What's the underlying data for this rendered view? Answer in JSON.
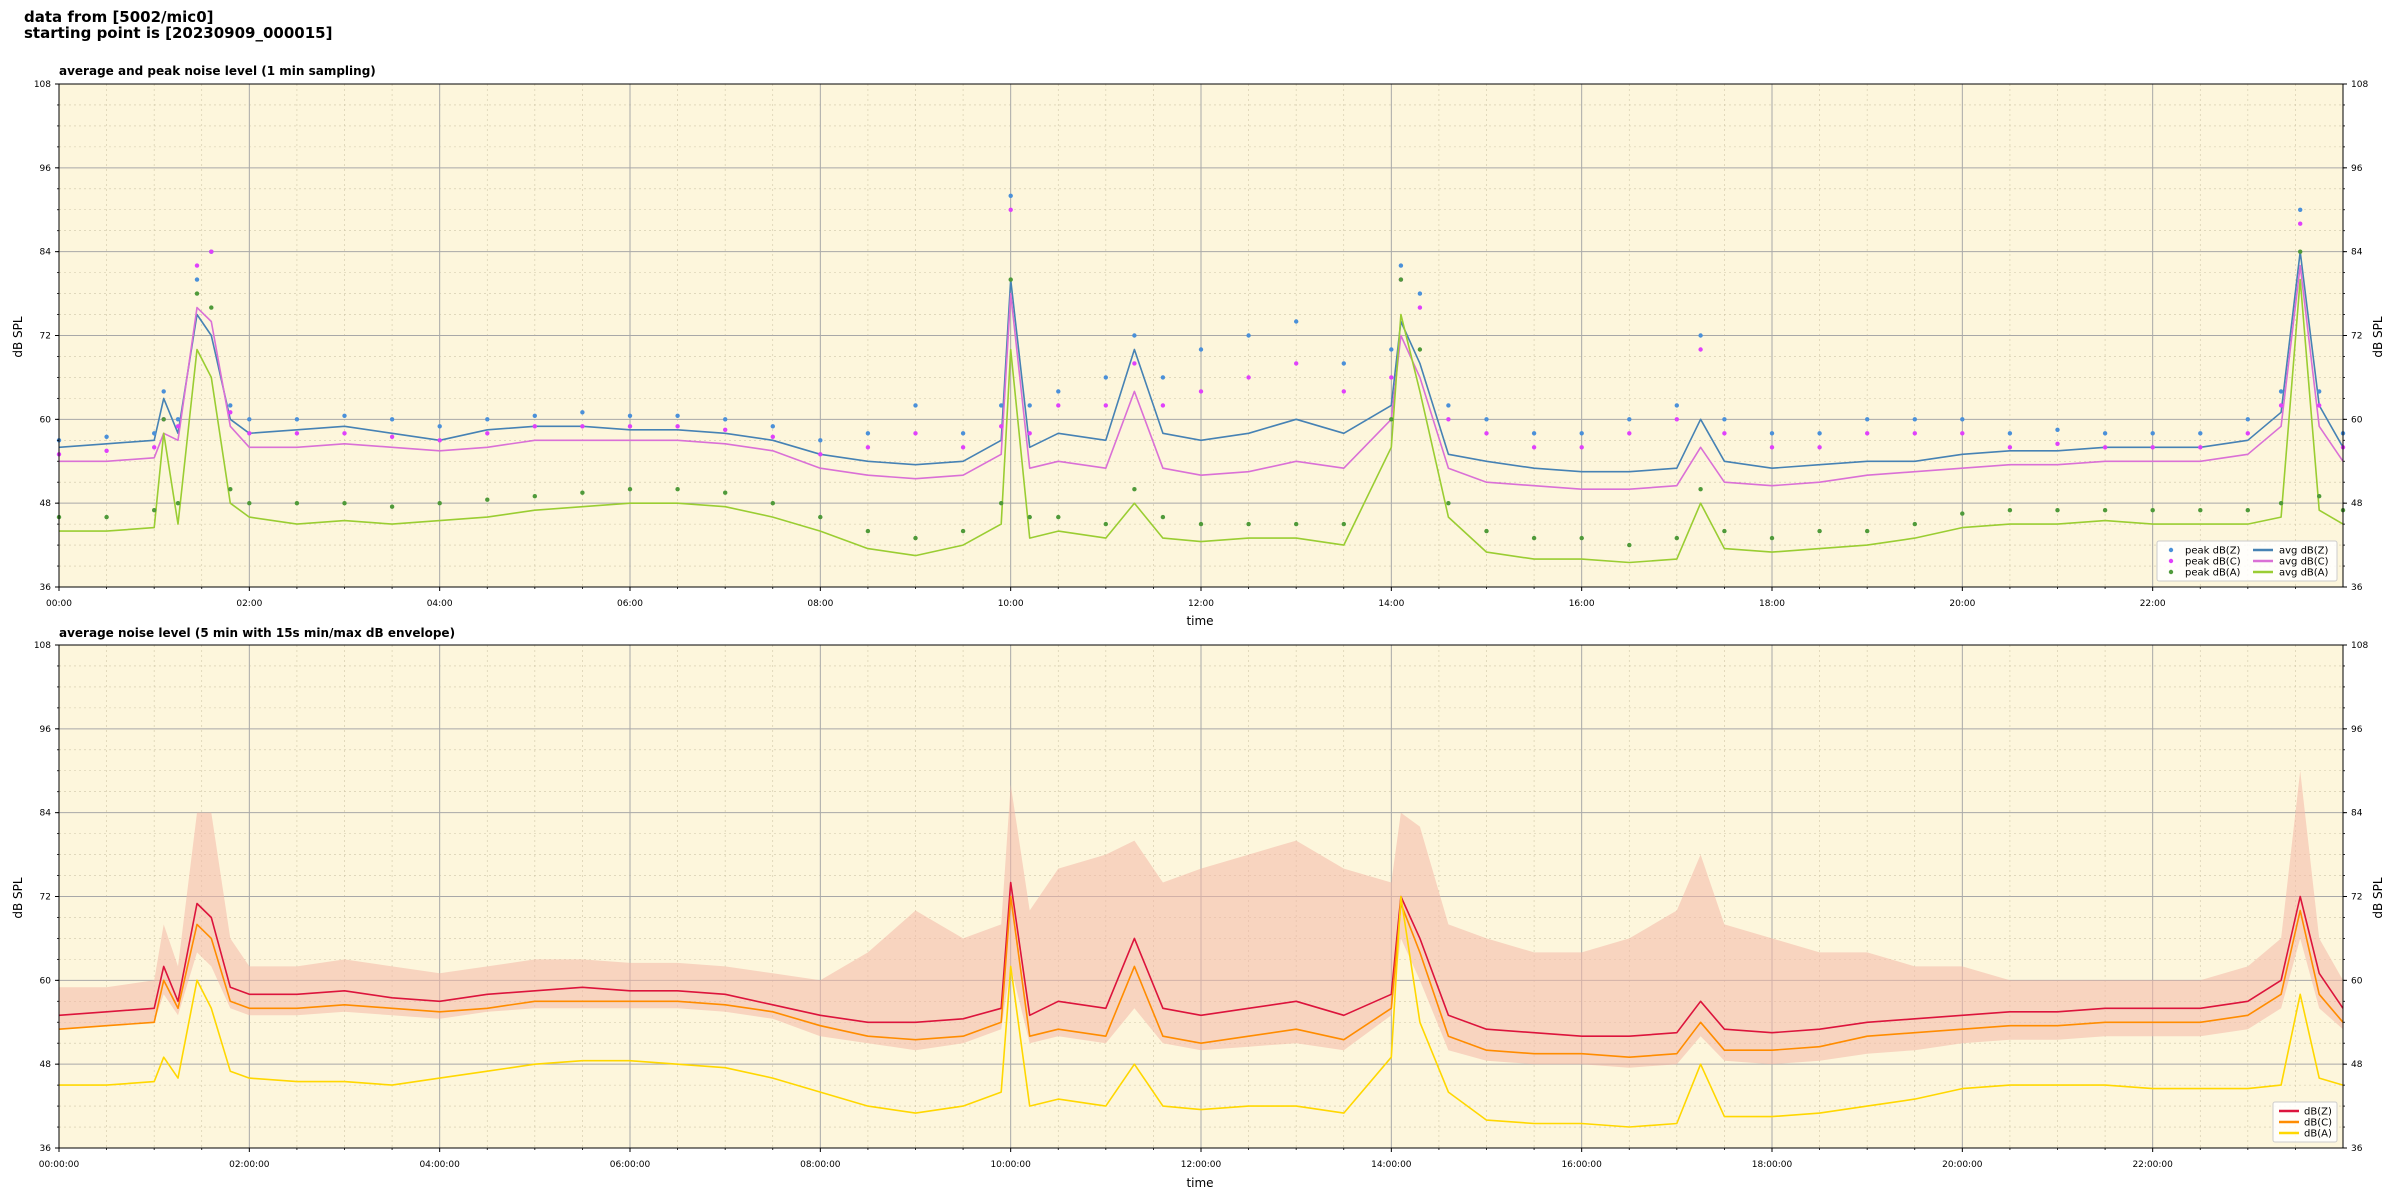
{
  "header": {
    "line1": "data from [5002/mic0]",
    "line2": "starting point is [20230909_000015]"
  },
  "chart_data": [
    {
      "type": "line",
      "title": "average and peak noise level (1 min sampling)",
      "xlabel": "time",
      "ylabel": "dB SPL",
      "ylabel_right": "dB SPL",
      "xlim": [
        0,
        24
      ],
      "ylim": [
        36,
        108
      ],
      "yticks": [
        36,
        48,
        60,
        72,
        84,
        96,
        108
      ],
      "xtick_labels": [
        "00:00",
        "02:00",
        "04:00",
        "06:00",
        "08:00",
        "10:00",
        "12:00",
        "14:00",
        "16:00",
        "18:00",
        "20:00",
        "22:00"
      ],
      "grid": true,
      "legend_position": "lower-right",
      "background_color": "#fdf6dc",
      "x": [
        0.0,
        0.5,
        1.0,
        1.1,
        1.25,
        1.45,
        1.6,
        1.8,
        2.0,
        2.5,
        3.0,
        3.5,
        4.0,
        4.5,
        5.0,
        5.5,
        6.0,
        6.5,
        7.0,
        7.5,
        8.0,
        8.5,
        9.0,
        9.5,
        9.9,
        10.0,
        10.2,
        10.5,
        11.0,
        11.3,
        11.6,
        12.0,
        12.5,
        13.0,
        13.5,
        14.0,
        14.1,
        14.3,
        14.6,
        15.0,
        15.5,
        16.0,
        16.5,
        17.0,
        17.25,
        17.5,
        18.0,
        18.5,
        19.0,
        19.5,
        20.0,
        20.5,
        21.0,
        21.5,
        22.0,
        22.5,
        23.0,
        23.35,
        23.55,
        23.75,
        24.0
      ],
      "series": [
        {
          "name": "avg dB(Z)",
          "style": "line",
          "color": "#4682b4",
          "values": [
            56,
            56.5,
            57,
            63,
            58,
            75,
            72,
            60,
            58,
            58.5,
            59,
            58,
            57,
            58.5,
            59,
            59,
            58.5,
            58.5,
            58,
            57,
            55,
            54,
            53.5,
            54,
            57,
            80,
            56,
            58,
            57,
            70,
            58,
            57,
            58,
            60,
            58,
            62,
            74,
            68,
            55,
            54,
            53,
            52.5,
            52.5,
            53,
            60,
            54,
            53,
            53.5,
            54,
            54,
            55,
            55.5,
            55.5,
            56,
            56,
            56,
            57,
            61,
            84,
            62,
            56
          ]
        },
        {
          "name": "avg dB(C)",
          "style": "line",
          "color": "#da70d6",
          "values": [
            54,
            54,
            54.5,
            58,
            57,
            76,
            74,
            59,
            56,
            56,
            56.5,
            56,
            55.5,
            56,
            57,
            57,
            57,
            57,
            56.5,
            55.5,
            53,
            52,
            51.5,
            52,
            55,
            78,
            53,
            54,
            53,
            64,
            53,
            52,
            52.5,
            54,
            53,
            60,
            72,
            66,
            53,
            51,
            50.5,
            50,
            50,
            50.5,
            56,
            51,
            50.5,
            51,
            52,
            52.5,
            53,
            53.5,
            53.5,
            54,
            54,
            54,
            55,
            59,
            82,
            59,
            54
          ]
        },
        {
          "name": "avg dB(A)",
          "style": "line",
          "color": "#9acd32",
          "values": [
            44,
            44,
            44.5,
            58,
            45,
            70,
            66,
            48,
            46,
            45,
            45.5,
            45,
            45.5,
            46,
            47,
            47.5,
            48,
            48,
            47.5,
            46,
            44,
            41.5,
            40.5,
            42,
            45,
            70,
            43,
            44,
            43,
            48,
            43,
            42.5,
            43,
            43,
            42,
            56,
            75,
            64,
            46,
            41,
            40,
            40,
            39.5,
            40,
            48,
            41.5,
            41,
            41.5,
            42,
            43,
            44.5,
            45,
            45,
            45.5,
            45,
            45,
            45,
            46,
            80,
            47,
            45
          ]
        },
        {
          "name": "peak dB(Z)",
          "style": "dots",
          "color": "#4a90d9",
          "values": [
            57,
            57.5,
            58,
            64,
            60,
            80,
            84,
            62,
            60,
            60,
            60.5,
            60,
            59,
            60,
            60.5,
            61,
            60.5,
            60.5,
            60,
            59,
            57,
            58,
            62,
            58,
            62,
            92,
            62,
            64,
            66,
            72,
            66,
            70,
            72,
            74,
            68,
            70,
            82,
            78,
            62,
            60,
            58,
            58,
            60,
            62,
            72,
            60,
            58,
            58,
            60,
            60,
            60,
            58,
            58.5,
            58,
            58,
            58,
            60,
            64,
            90,
            64,
            58
          ]
        },
        {
          "name": "peak dB(C)",
          "style": "dots",
          "color": "#e040fb",
          "values": [
            55,
            55.5,
            56,
            60,
            59,
            82,
            84,
            61,
            58,
            58,
            58,
            57.5,
            57,
            58,
            59,
            59,
            59,
            59,
            58.5,
            57.5,
            55,
            56,
            58,
            56,
            59,
            90,
            58,
            62,
            62,
            68,
            62,
            64,
            66,
            68,
            64,
            66,
            80,
            76,
            60,
            58,
            56,
            56,
            58,
            60,
            70,
            58,
            56,
            56,
            58,
            58,
            58,
            56,
            56.5,
            56,
            56,
            56,
            58,
            62,
            88,
            62,
            56
          ]
        },
        {
          "name": "peak dB(A)",
          "style": "dots",
          "color": "#4f9a3a",
          "values": [
            46,
            46,
            47,
            60,
            48,
            78,
            76,
            50,
            48,
            48,
            48,
            47.5,
            48,
            48.5,
            49,
            49.5,
            50,
            50,
            49.5,
            48,
            46,
            44,
            43,
            44,
            48,
            80,
            46,
            46,
            45,
            50,
            46,
            45,
            45,
            45,
            45,
            60,
            80,
            70,
            48,
            44,
            43,
            43,
            42,
            43,
            50,
            44,
            43,
            44,
            44,
            45,
            46.5,
            47,
            47,
            47,
            47,
            47,
            47,
            48,
            84,
            49,
            47
          ]
        }
      ]
    },
    {
      "type": "line",
      "title": "average noise level (5 min with 15s min/max dB envelope)",
      "xlabel": "time",
      "ylabel": "dB SPL",
      "ylabel_right": "dB SPL",
      "xlim": [
        0,
        24
      ],
      "ylim": [
        36,
        108
      ],
      "yticks": [
        36,
        48,
        60,
        72,
        84,
        96,
        108
      ],
      "xtick_labels": [
        "00:00:00",
        "02:00:00",
        "04:00:00",
        "06:00:00",
        "08:00:00",
        "10:00:00",
        "12:00:00",
        "14:00:00",
        "16:00:00",
        "18:00:00",
        "20:00:00",
        "22:00:00"
      ],
      "grid": true,
      "legend_position": "lower-right",
      "background_color": "#fdf6dc",
      "envelope_color": "#f4b8a8",
      "x": [
        0.0,
        0.5,
        1.0,
        1.1,
        1.25,
        1.45,
        1.6,
        1.8,
        2.0,
        2.5,
        3.0,
        3.5,
        4.0,
        4.5,
        5.0,
        5.5,
        6.0,
        6.5,
        7.0,
        7.5,
        8.0,
        8.5,
        9.0,
        9.5,
        9.9,
        10.0,
        10.2,
        10.5,
        11.0,
        11.3,
        11.6,
        12.0,
        12.5,
        13.0,
        13.5,
        14.0,
        14.1,
        14.3,
        14.6,
        15.0,
        15.5,
        16.0,
        16.5,
        17.0,
        17.25,
        17.5,
        18.0,
        18.5,
        19.0,
        19.5,
        20.0,
        20.5,
        21.0,
        21.5,
        22.0,
        22.5,
        23.0,
        23.35,
        23.55,
        23.75,
        24.0
      ],
      "envelope": {
        "min": [
          53,
          53.5,
          54,
          58,
          55,
          64,
          62,
          56,
          55,
          55,
          55.5,
          55,
          54.5,
          55.5,
          56,
          56,
          56,
          56,
          55.5,
          54.5,
          52,
          51,
          50,
          51,
          53,
          62,
          51,
          52,
          51,
          56,
          51,
          50,
          50.5,
          51,
          50,
          55,
          66,
          60,
          50,
          48.5,
          48,
          48,
          47.5,
          48,
          52,
          48.5,
          48,
          48.5,
          49.5,
          50,
          51,
          51.5,
          51.5,
          52,
          52,
          52,
          53,
          56,
          66,
          56,
          53
        ],
        "max": [
          59,
          59,
          60,
          68,
          62,
          84,
          84,
          66,
          62,
          62,
          63,
          62,
          61,
          62,
          63,
          63,
          62.5,
          62.5,
          62,
          61,
          60,
          64,
          70,
          66,
          68,
          88,
          70,
          76,
          78,
          80,
          74,
          76,
          78,
          80,
          76,
          74,
          84,
          82,
          68,
          66,
          64,
          64,
          66,
          70,
          78,
          68,
          66,
          64,
          64,
          62,
          62,
          60,
          60,
          60,
          60,
          60,
          62,
          66,
          90,
          66,
          60
        ]
      },
      "series": [
        {
          "name": "dB(Z)",
          "style": "line",
          "color": "#dc143c",
          "values": [
            55,
            55.5,
            56,
            62,
            57,
            71,
            69,
            59,
            58,
            58,
            58.5,
            57.5,
            57,
            58,
            58.5,
            59,
            58.5,
            58.5,
            58,
            56.5,
            55,
            54,
            54,
            54.5,
            56,
            74,
            55,
            57,
            56,
            66,
            56,
            55,
            56,
            57,
            55,
            58,
            72,
            66,
            55,
            53,
            52.5,
            52,
            52,
            52.5,
            57,
            53,
            52.5,
            53,
            54,
            54.5,
            55,
            55.5,
            55.5,
            56,
            56,
            56,
            57,
            60,
            72,
            61,
            56
          ]
        },
        {
          "name": "dB(C)",
          "style": "line",
          "color": "#ff8c00",
          "values": [
            53,
            53.5,
            54,
            60,
            56,
            68,
            66,
            57,
            56,
            56,
            56.5,
            56,
            55.5,
            56,
            57,
            57,
            57,
            57,
            56.5,
            55.5,
            53.5,
            52,
            51.5,
            52,
            54,
            72,
            52,
            53,
            52,
            62,
            52,
            51,
            52,
            53,
            51.5,
            56,
            71,
            64,
            52,
            50,
            49.5,
            49.5,
            49,
            49.5,
            54,
            50,
            50,
            50.5,
            52,
            52.5,
            53,
            53.5,
            53.5,
            54,
            54,
            54,
            55,
            58,
            70,
            58,
            54
          ]
        },
        {
          "name": "dB(A)",
          "style": "line",
          "color": "#ffd700",
          "values": [
            45,
            45,
            45.5,
            49,
            46,
            60,
            56,
            47,
            46,
            45.5,
            45.5,
            45,
            46,
            47,
            48,
            48.5,
            48.5,
            48,
            47.5,
            46,
            44,
            42,
            41,
            42,
            44,
            62,
            42,
            43,
            42,
            48,
            42,
            41.5,
            42,
            42,
            41,
            49,
            72,
            54,
            44,
            40,
            39.5,
            39.5,
            39,
            39.5,
            48,
            40.5,
            40.5,
            41,
            42,
            43,
            44.5,
            45,
            45,
            45,
            44.5,
            44.5,
            44.5,
            45,
            58,
            46,
            45
          ]
        }
      ]
    }
  ]
}
